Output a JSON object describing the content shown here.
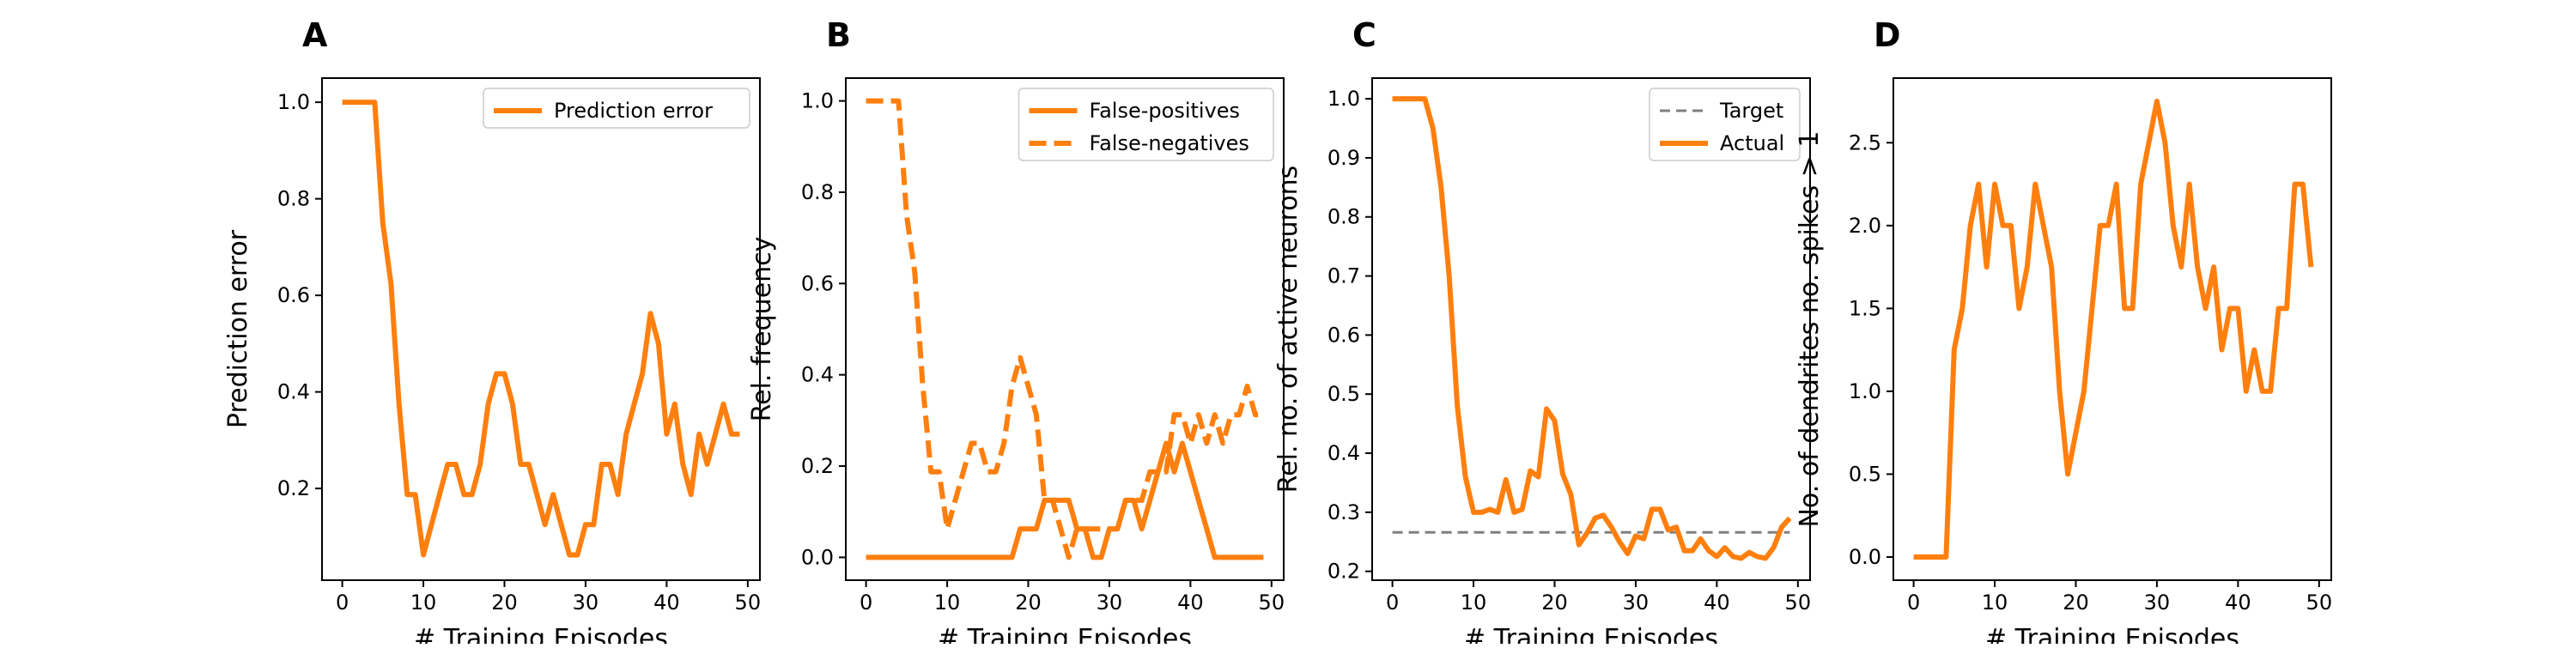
{
  "colors": {
    "accent": "#ff7f0e",
    "target": "#7f7f7f",
    "frame": "#000000"
  },
  "chart_data": [
    {
      "panel": "A",
      "type": "line",
      "xlabel": "# Training Episodes",
      "ylabel": "Prediction error",
      "xlim": [
        -2.5,
        51.5
      ],
      "ylim": [
        0.01,
        1.05
      ],
      "xticks": [
        0,
        10,
        20,
        30,
        40,
        50
      ],
      "yticks": [
        0.2,
        0.4,
        0.6,
        0.8,
        1.0
      ],
      "ytick_labels": [
        "0.2",
        "0.4",
        "0.6",
        "0.8",
        "1.0"
      ],
      "legend": {
        "position": "top-right"
      },
      "series": [
        {
          "name": "Prediction error",
          "style": "solid",
          "x": [
            0,
            1,
            2,
            3,
            4,
            5,
            6,
            7,
            8,
            9,
            10,
            11,
            12,
            13,
            14,
            15,
            16,
            17,
            18,
            19,
            20,
            21,
            22,
            23,
            24,
            25,
            26,
            27,
            28,
            29,
            30,
            31,
            32,
            33,
            34,
            35,
            36,
            37,
            38,
            39,
            40,
            41,
            42,
            43,
            44,
            45,
            46,
            47,
            48,
            49
          ],
          "y": [
            1.0,
            1.0,
            1.0,
            1.0,
            1.0,
            0.75,
            0.625,
            0.375,
            0.1875,
            0.1875,
            0.0625,
            0.125,
            0.1875,
            0.25,
            0.25,
            0.1875,
            0.1875,
            0.25,
            0.375,
            0.4375,
            0.4375,
            0.375,
            0.25,
            0.25,
            0.1875,
            0.125,
            0.1875,
            0.125,
            0.0625,
            0.0625,
            0.125,
            0.125,
            0.25,
            0.25,
            0.1875,
            0.3125,
            0.375,
            0.4375,
            0.5625,
            0.5,
            0.3125,
            0.375,
            0.25,
            0.1875,
            0.3125,
            0.25,
            0.3125,
            0.375,
            0.3125,
            0.3125
          ]
        }
      ]
    },
    {
      "panel": "B",
      "type": "line",
      "xlabel": "# Training Episodes",
      "ylabel": "Rel. frequency",
      "xlim": [
        -2.5,
        51.5
      ],
      "ylim": [
        -0.05,
        1.05
      ],
      "xticks": [
        0,
        10,
        20,
        30,
        40,
        50
      ],
      "yticks": [
        0.0,
        0.2,
        0.4,
        0.6,
        0.8,
        1.0
      ],
      "ytick_labels": [
        "0.0",
        "0.2",
        "0.4",
        "0.6",
        "0.8",
        "1.0"
      ],
      "legend": {
        "position": "top-right"
      },
      "series": [
        {
          "name": "False-positives",
          "style": "solid",
          "x": [
            0,
            1,
            2,
            3,
            4,
            5,
            6,
            7,
            8,
            9,
            10,
            11,
            12,
            13,
            14,
            15,
            16,
            17,
            18,
            19,
            20,
            21,
            22,
            23,
            24,
            25,
            26,
            27,
            28,
            29,
            30,
            31,
            32,
            33,
            34,
            35,
            36,
            37,
            38,
            39,
            40,
            41,
            42,
            43,
            44,
            45,
            46,
            47,
            48,
            49
          ],
          "y": [
            0,
            0,
            0,
            0,
            0,
            0,
            0,
            0,
            0,
            0,
            0,
            0,
            0,
            0,
            0,
            0,
            0,
            0,
            0,
            0.0625,
            0.0625,
            0.0625,
            0.125,
            0.125,
            0.125,
            0.125,
            0.0625,
            0.0625,
            0,
            0,
            0.0625,
            0.0625,
            0.125,
            0.125,
            0.0625,
            0.125,
            0.1875,
            0.25,
            0.1875,
            0.25,
            0.1875,
            0.125,
            0.0625,
            0,
            0,
            0,
            0,
            0,
            0,
            0
          ]
        },
        {
          "name": "False-negatives",
          "style": "dashed",
          "x": [
            0,
            1,
            2,
            3,
            4,
            5,
            6,
            7,
            8,
            9,
            10,
            11,
            12,
            13,
            14,
            15,
            16,
            17,
            18,
            19,
            20,
            21,
            22,
            23,
            24,
            25,
            26,
            27,
            28,
            29,
            30,
            31,
            32,
            33,
            34,
            35,
            36,
            37,
            38,
            39,
            40,
            41,
            42,
            43,
            44,
            45,
            46,
            47,
            48,
            49
          ],
          "y": [
            1.0,
            1.0,
            1.0,
            1.0,
            1.0,
            0.75,
            0.625,
            0.375,
            0.1875,
            0.1875,
            0.0625,
            0.125,
            0.1875,
            0.25,
            0.25,
            0.1875,
            0.1875,
            0.25,
            0.375,
            0.4375,
            0.375,
            0.3125,
            0.125,
            0.125,
            0.0625,
            0.0,
            0.0625,
            0.0625,
            0.0625,
            0.0625,
            0.0625,
            0.0625,
            0.125,
            0.125,
            0.125,
            0.1875,
            0.1875,
            0.1875,
            0.3125,
            0.3125,
            0.25,
            0.3125,
            0.25,
            0.3125,
            0.25,
            0.3125,
            0.3125,
            0.375,
            0.3125,
            0.3125
          ]
        }
      ]
    },
    {
      "panel": "C",
      "type": "line",
      "xlabel": "# Training Episodes",
      "ylabel": "Rel. no. of active neurons",
      "xlim": [
        -2.5,
        51.5
      ],
      "ylim": [
        0.185,
        1.035
      ],
      "xticks": [
        0,
        10,
        20,
        30,
        40,
        50
      ],
      "yticks": [
        0.2,
        0.3,
        0.4,
        0.5,
        0.6,
        0.7,
        0.8,
        0.9,
        1.0
      ],
      "ytick_labels": [
        "0.2",
        "0.3",
        "0.4",
        "0.5",
        "0.6",
        "0.7",
        "0.8",
        "0.9",
        "1.0"
      ],
      "legend": {
        "position": "top-right"
      },
      "series": [
        {
          "name": "Target",
          "style": "dashed-thin",
          "x": [
            0,
            49
          ],
          "y": [
            0.266,
            0.266
          ]
        },
        {
          "name": "Actual",
          "style": "solid",
          "x": [
            0,
            1,
            2,
            3,
            4,
            5,
            6,
            7,
            8,
            9,
            10,
            11,
            12,
            13,
            14,
            15,
            16,
            17,
            18,
            19,
            20,
            21,
            22,
            23,
            24,
            25,
            26,
            27,
            28,
            29,
            30,
            31,
            32,
            33,
            34,
            35,
            36,
            37,
            38,
            39,
            40,
            41,
            42,
            43,
            44,
            45,
            46,
            47,
            48,
            49
          ],
          "y": [
            1.0,
            1.0,
            1.0,
            1.0,
            1.0,
            0.95,
            0.85,
            0.7,
            0.48,
            0.36,
            0.3,
            0.3,
            0.305,
            0.3,
            0.355,
            0.3,
            0.305,
            0.37,
            0.36,
            0.475,
            0.455,
            0.365,
            0.33,
            0.245,
            0.265,
            0.29,
            0.295,
            0.275,
            0.25,
            0.23,
            0.26,
            0.255,
            0.305,
            0.305,
            0.27,
            0.275,
            0.235,
            0.235,
            0.255,
            0.235,
            0.225,
            0.24,
            0.225,
            0.222,
            0.232,
            0.225,
            0.222,
            0.24,
            0.275,
            0.29
          ]
        }
      ]
    },
    {
      "panel": "D",
      "type": "line",
      "xlabel": "# Training Episodes",
      "ylabel": "No. of dendrites no. spikes > 1",
      "xlim": [
        -2.5,
        51.5
      ],
      "ylim": [
        -0.14,
        2.89
      ],
      "xticks": [
        0,
        10,
        20,
        30,
        40,
        50
      ],
      "yticks": [
        0.0,
        0.5,
        1.0,
        1.5,
        2.0,
        2.5
      ],
      "ytick_labels": [
        "0.0",
        "0.5",
        "1.0",
        "1.5",
        "2.0",
        "2.5"
      ],
      "series": [
        {
          "name": "",
          "style": "solid",
          "x": [
            0,
            1,
            2,
            3,
            4,
            5,
            6,
            7,
            8,
            9,
            10,
            11,
            12,
            13,
            14,
            15,
            16,
            17,
            18,
            19,
            20,
            21,
            22,
            23,
            24,
            25,
            26,
            27,
            28,
            29,
            30,
            31,
            32,
            33,
            34,
            35,
            36,
            37,
            38,
            39,
            40,
            41,
            42,
            43,
            44,
            45,
            46,
            47,
            48,
            49
          ],
          "y": [
            0,
            0,
            0,
            0,
            0,
            1.25,
            1.5,
            2.0,
            2.25,
            1.75,
            2.25,
            2.0,
            2.0,
            1.5,
            1.75,
            2.25,
            2.0,
            1.75,
            1.0,
            0.5,
            0.75,
            1.0,
            1.5,
            2.0,
            2.0,
            2.25,
            1.5,
            1.5,
            2.25,
            2.5,
            2.75,
            2.5,
            2.0,
            1.75,
            2.25,
            1.75,
            1.5,
            1.75,
            1.25,
            1.5,
            1.5,
            1.0,
            1.25,
            1.0,
            1.0,
            1.5,
            1.5,
            2.25,
            2.25,
            1.75
          ]
        }
      ]
    }
  ]
}
